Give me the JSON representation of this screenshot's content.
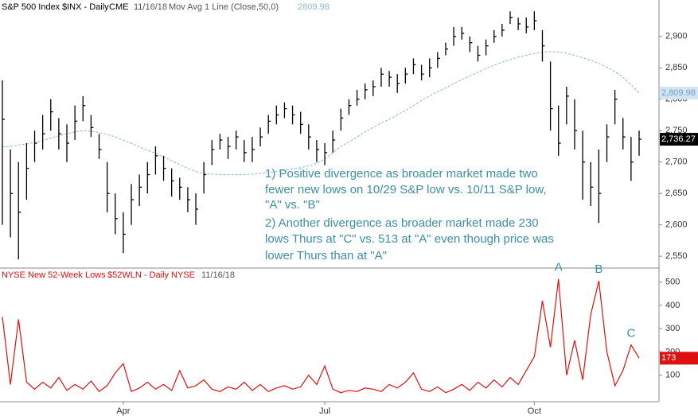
{
  "chart_data": [
    {
      "type": "ohlc",
      "title": "S&P 500 Index",
      "subtitle": "$INX - Daily",
      "exchange": "CME",
      "date": "11/16/18",
      "color": "#000000",
      "high": [
        2830,
        2720,
        2700,
        2730,
        2750,
        2775,
        2800,
        2770,
        2760,
        2790,
        2805,
        2775,
        2745,
        2700,
        2650,
        2620,
        2665,
        2680,
        2700,
        2725,
        2710,
        2690,
        2675,
        2660,
        2650,
        2700,
        2735,
        2745,
        2740,
        2750,
        2735,
        2740,
        2755,
        2775,
        2790,
        2795,
        2790,
        2780,
        2760,
        2735,
        2730,
        2750,
        2785,
        2800,
        2815,
        2825,
        2830,
        2850,
        2845,
        2840,
        2850,
        2865,
        2855,
        2865,
        2875,
        2890,
        2915,
        2915,
        2900,
        2885,
        2895,
        2910,
        2920,
        2940,
        2930,
        2930,
        2940,
        2910,
        2860,
        2790,
        2820,
        2800,
        2750,
        2700,
        2720,
        2760,
        2815,
        2770,
        2740,
        2750
      ],
      "low": [
        2600,
        2580,
        2545,
        2640,
        2700,
        2720,
        2750,
        2720,
        2700,
        2735,
        2765,
        2740,
        2705,
        2620,
        2585,
        2555,
        2600,
        2630,
        2650,
        2680,
        2670,
        2645,
        2640,
        2620,
        2600,
        2650,
        2695,
        2720,
        2705,
        2720,
        2700,
        2700,
        2725,
        2745,
        2760,
        2770,
        2760,
        2745,
        2720,
        2700,
        2695,
        2715,
        2750,
        2775,
        2790,
        2800,
        2805,
        2820,
        2820,
        2810,
        2825,
        2840,
        2830,
        2835,
        2850,
        2870,
        2885,
        2895,
        2875,
        2860,
        2870,
        2890,
        2900,
        2920,
        2910,
        2905,
        2910,
        2860,
        2750,
        2710,
        2760,
        2720,
        2640,
        2630,
        2603,
        2700,
        2760,
        2720,
        2670,
        2710
      ],
      "close": [
        2768,
        2650,
        2620,
        2690,
        2730,
        2745,
        2780,
        2745,
        2730,
        2765,
        2790,
        2755,
        2720,
        2650,
        2610,
        2585,
        2640,
        2660,
        2680,
        2710,
        2690,
        2670,
        2660,
        2640,
        2625,
        2680,
        2720,
        2735,
        2725,
        2740,
        2715,
        2720,
        2740,
        2765,
        2775,
        2785,
        2775,
        2760,
        2740,
        2720,
        2715,
        2735,
        2770,
        2790,
        2800,
        2815,
        2820,
        2840,
        2835,
        2825,
        2840,
        2855,
        2840,
        2850,
        2865,
        2880,
        2900,
        2905,
        2890,
        2870,
        2885,
        2900,
        2910,
        2930,
        2920,
        2915,
        2925,
        2885,
        2785,
        2730,
        2805,
        2750,
        2700,
        2660,
        2650,
        2740,
        2800,
        2740,
        2700,
        2736.27
      ],
      "close_label": "2,736.27",
      "overlay": {
        "name": "Mov Avg 1 Line (Close,50,0)",
        "color": "#8db9d2",
        "last_label": "2,809.98",
        "values": [
          2724,
          2725,
          2727,
          2729,
          2731,
          2734,
          2738,
          2742,
          2745,
          2748,
          2750,
          2749,
          2747,
          2744,
          2740,
          2735,
          2730,
          2724,
          2719,
          2714,
          2708,
          2702,
          2696,
          2690,
          2685,
          2682,
          2681,
          2680,
          2680,
          2680,
          2680,
          2681,
          2682,
          2683,
          2685,
          2687,
          2689,
          2691,
          2694,
          2698,
          2705,
          2715,
          2725,
          2732,
          2740,
          2748,
          2755,
          2762,
          2768,
          2775,
          2782,
          2790,
          2798,
          2805,
          2812,
          2818,
          2825,
          2831,
          2837,
          2843,
          2849,
          2854,
          2859,
          2863,
          2867,
          2870,
          2873,
          2875,
          2876,
          2875,
          2873,
          2870,
          2866,
          2862,
          2857,
          2851,
          2844,
          2835,
          2823,
          2809.98
        ]
      },
      "annotation": [
        "1) Positive divergence as broader market made two",
        "fewer new lows on 10/29 S&P low vs. 10/11 S&P low,",
        "\"A\" vs. \"B\"",
        "2) Another divergence as broader market made 230",
        "lows Thurs at \"C\" vs. 513 at \"A\" even though price was",
        "lower Thurs than at \"A\""
      ],
      "ylim": [
        2535,
        2958
      ],
      "yticks": [
        {
          "value": 2550,
          "label": "2,550"
        },
        {
          "value": 2600,
          "label": "2,600"
        },
        {
          "value": 2650,
          "label": "2,650"
        },
        {
          "value": 2700,
          "label": "2,700"
        },
        {
          "value": 2750,
          "label": "2,750"
        },
        {
          "value": 2800,
          "label": "2,800"
        },
        {
          "value": 2850,
          "label": "2,850"
        },
        {
          "value": 2900,
          "label": "2,900"
        }
      ]
    },
    {
      "type": "line",
      "title": "NYSE New 52-Week Lows",
      "subtitle": "$52WLN - Daily",
      "exchange": "NYSE",
      "date": "11/16/18",
      "color": "#e01010",
      "categories": [
        null,
        null,
        null,
        null,
        null,
        null,
        null,
        null,
        null,
        null,
        null,
        null,
        null,
        null,
        null,
        "Apr",
        null,
        null,
        null,
        null,
        null,
        null,
        null,
        null,
        null,
        null,
        null,
        null,
        null,
        null,
        null,
        null,
        null,
        null,
        null,
        null,
        null,
        null,
        null,
        null,
        "Jul",
        null,
        null,
        null,
        null,
        null,
        null,
        null,
        null,
        null,
        null,
        null,
        null,
        null,
        null,
        null,
        null,
        null,
        null,
        null,
        null,
        null,
        null,
        null,
        null,
        null,
        "Oct",
        null,
        null,
        null,
        null,
        null,
        null,
        null,
        null,
        null,
        null,
        null,
        null,
        null
      ],
      "values": [
        350,
        60,
        340,
        70,
        40,
        70,
        45,
        90,
        35,
        60,
        40,
        75,
        30,
        55,
        110,
        150,
        30,
        45,
        70,
        40,
        60,
        35,
        120,
        45,
        55,
        80,
        40,
        30,
        50,
        40,
        70,
        35,
        60,
        30,
        45,
        55,
        40,
        50,
        100,
        60,
        140,
        40,
        25,
        35,
        30,
        45,
        40,
        30,
        60,
        45,
        70,
        110,
        40,
        30,
        50,
        25,
        40,
        60,
        35,
        70,
        45,
        80,
        50,
        90,
        60,
        120,
        180,
        420,
        220,
        513,
        100,
        250,
        80,
        360,
        505,
        200,
        55,
        120,
        230,
        173
      ],
      "annotations": [
        "A",
        "B",
        "C"
      ],
      "ylim": [
        0,
        560
      ],
      "yticks": [
        100,
        200,
        300,
        400,
        500
      ]
    }
  ]
}
